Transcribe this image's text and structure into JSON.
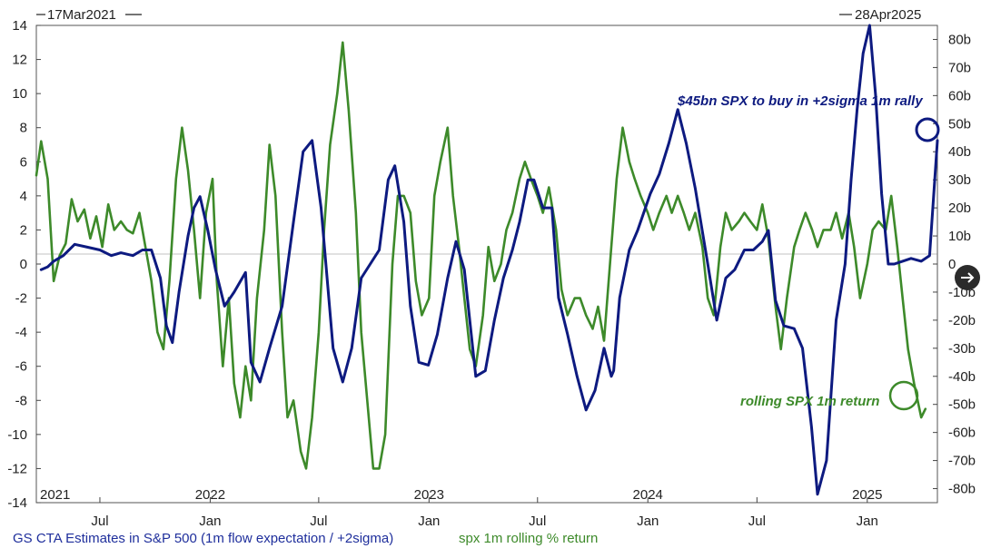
{
  "header": {
    "start_date": "17Mar2021",
    "end_date": "28Apr2025"
  },
  "legend": {
    "series1_label": "GS CTA Estimates in S&P 500 (1m flow expectation / +2sigma)",
    "series2_label": "spx 1m rolling % return"
  },
  "annotations": {
    "top": "$45bn SPX to buy in +2sigma 1m rally",
    "bottom": "rolling SPX 1m return"
  },
  "colors": {
    "series1": "#0d1a80",
    "series2": "#3d8a2a",
    "legend1": "#1f2f9c",
    "legend2": "#3d8a2a"
  },
  "icons": {
    "next_button": "arrow-right-icon"
  },
  "chart_data": {
    "type": "line",
    "x_range": [
      "2021-03-17",
      "2025-04-28"
    ],
    "left_axis": {
      "ylim": [
        -14,
        14
      ],
      "ticks": [
        14,
        12,
        10,
        8,
        6,
        4,
        2,
        0,
        -2,
        -4,
        -6,
        -8,
        -10,
        -12,
        -14
      ],
      "tick_labels": [
        "14",
        "12",
        "10",
        "8",
        "6",
        "4",
        "2",
        "0",
        "-2",
        "-4",
        "-6",
        "-8",
        "-10",
        "-12",
        "-14"
      ]
    },
    "right_axis": {
      "ylim": [
        -85,
        85
      ],
      "ticks": [
        80,
        70,
        60,
        50,
        40,
        30,
        20,
        10,
        0,
        -10,
        -20,
        -30,
        -40,
        -50,
        -60,
        -70,
        -80
      ],
      "tick_labels": [
        "80b",
        "70b",
        "60b",
        "50b",
        "40b",
        "30b",
        "20b",
        "10b",
        "0",
        "-10b",
        "-20b",
        "-30b",
        "-40b",
        "-50b",
        "-60b",
        "-70b",
        "-80b"
      ]
    },
    "x_axis": {
      "month_ticks": [
        {
          "date": "2021-07-01",
          "label": "Jul"
        },
        {
          "date": "2022-01-01",
          "label": "Jan"
        },
        {
          "date": "2022-07-01",
          "label": "Jul"
        },
        {
          "date": "2023-01-01",
          "label": "Jan"
        },
        {
          "date": "2023-07-01",
          "label": "Jul"
        },
        {
          "date": "2024-01-01",
          "label": "Jan"
        },
        {
          "date": "2024-07-01",
          "label": "Jul"
        },
        {
          "date": "2025-01-01",
          "label": "Jan"
        }
      ],
      "year_labels": [
        {
          "date": "2021-03-17",
          "label": "2021"
        },
        {
          "date": "2022-01-01",
          "label": "2022"
        },
        {
          "date": "2023-01-01",
          "label": "2023"
        },
        {
          "date": "2024-01-01",
          "label": "2024"
        },
        {
          "date": "2025-01-01",
          "label": "2025"
        }
      ]
    },
    "series": [
      {
        "axis": "right",
        "points": [
          [
            "2021-03-25",
            -2
          ],
          [
            "2021-04-05",
            -1
          ],
          [
            "2021-04-15",
            1
          ],
          [
            "2021-05-01",
            3
          ],
          [
            "2021-05-20",
            7
          ],
          [
            "2021-06-10",
            6
          ],
          [
            "2021-07-01",
            5
          ],
          [
            "2021-07-20",
            3
          ],
          [
            "2021-08-05",
            4
          ],
          [
            "2021-08-25",
            3
          ],
          [
            "2021-09-10",
            5
          ],
          [
            "2021-09-25",
            5
          ],
          [
            "2021-10-10",
            -5
          ],
          [
            "2021-10-20",
            -22
          ],
          [
            "2021-10-30",
            -28
          ],
          [
            "2021-11-10",
            -10
          ],
          [
            "2021-11-25",
            10
          ],
          [
            "2021-12-05",
            20
          ],
          [
            "2021-12-15",
            24
          ],
          [
            "2021-12-28",
            12
          ],
          [
            "2022-01-10",
            -2
          ],
          [
            "2022-01-25",
            -15
          ],
          [
            "2022-02-10",
            -10
          ],
          [
            "2022-03-01",
            -3
          ],
          [
            "2022-03-10",
            -35
          ],
          [
            "2022-03-25",
            -42
          ],
          [
            "2022-04-10",
            -30
          ],
          [
            "2022-05-01",
            -15
          ],
          [
            "2022-05-20",
            15
          ],
          [
            "2022-06-05",
            40
          ],
          [
            "2022-06-20",
            44
          ],
          [
            "2022-07-05",
            20
          ],
          [
            "2022-07-25",
            -30
          ],
          [
            "2022-08-10",
            -42
          ],
          [
            "2022-08-25",
            -30
          ],
          [
            "2022-09-10",
            -5
          ],
          [
            "2022-09-25",
            0
          ],
          [
            "2022-10-10",
            5
          ],
          [
            "2022-10-25",
            30
          ],
          [
            "2022-11-05",
            35
          ],
          [
            "2022-11-20",
            15
          ],
          [
            "2022-12-01",
            -15
          ],
          [
            "2022-12-15",
            -35
          ],
          [
            "2022-12-31",
            -36
          ],
          [
            "2023-01-15",
            -25
          ],
          [
            "2023-02-01",
            -5
          ],
          [
            "2023-02-15",
            8
          ],
          [
            "2023-03-01",
            -2
          ],
          [
            "2023-03-20",
            -40
          ],
          [
            "2023-04-05",
            -38
          ],
          [
            "2023-04-20",
            -20
          ],
          [
            "2023-05-05",
            -5
          ],
          [
            "2023-05-20",
            5
          ],
          [
            "2023-06-01",
            15
          ],
          [
            "2023-06-15",
            30
          ],
          [
            "2023-06-25",
            30
          ],
          [
            "2023-07-10",
            20
          ],
          [
            "2023-07-25",
            20
          ],
          [
            "2023-08-05",
            -12
          ],
          [
            "2023-08-20",
            -25
          ],
          [
            "2023-09-05",
            -40
          ],
          [
            "2023-09-20",
            -52
          ],
          [
            "2023-10-05",
            -45
          ],
          [
            "2023-10-20",
            -30
          ],
          [
            "2023-11-01",
            -40
          ],
          [
            "2023-11-05",
            -38
          ],
          [
            "2023-11-15",
            -12
          ],
          [
            "2023-12-01",
            5
          ],
          [
            "2023-12-15",
            12
          ],
          [
            "2024-01-05",
            25
          ],
          [
            "2024-01-20",
            32
          ],
          [
            "2024-02-05",
            43
          ],
          [
            "2024-02-20",
            55
          ],
          [
            "2024-03-05",
            43
          ],
          [
            "2024-03-20",
            27
          ],
          [
            "2024-04-10",
            0
          ],
          [
            "2024-04-25",
            -20
          ],
          [
            "2024-05-10",
            -5
          ],
          [
            "2024-05-25",
            -2
          ],
          [
            "2024-06-10",
            5
          ],
          [
            "2024-06-25",
            5
          ],
          [
            "2024-07-10",
            8
          ],
          [
            "2024-07-20",
            12
          ],
          [
            "2024-08-01",
            -13
          ],
          [
            "2024-08-15",
            -22
          ],
          [
            "2024-09-01",
            -23
          ],
          [
            "2024-09-15",
            -30
          ],
          [
            "2024-09-30",
            -58
          ],
          [
            "2024-10-10",
            -82
          ],
          [
            "2024-10-25",
            -70
          ],
          [
            "2024-11-10",
            -20
          ],
          [
            "2024-11-25",
            0
          ],
          [
            "2024-12-05",
            30
          ],
          [
            "2024-12-15",
            55
          ],
          [
            "2024-12-25",
            75
          ],
          [
            "2025-01-05",
            85
          ],
          [
            "2025-01-15",
            60
          ],
          [
            "2025-01-25",
            25
          ],
          [
            "2025-02-05",
            0
          ],
          [
            "2025-02-15",
            0
          ],
          [
            "2025-03-01",
            1
          ],
          [
            "2025-03-15",
            2
          ],
          [
            "2025-04-01",
            1
          ],
          [
            "2025-04-15",
            3
          ],
          [
            "2025-04-28",
            44
          ]
        ]
      },
      {
        "axis": "left",
        "points": [
          [
            "2021-03-17",
            5.2
          ],
          [
            "2021-03-25",
            7.2
          ],
          [
            "2021-04-05",
            5
          ],
          [
            "2021-04-15",
            -1
          ],
          [
            "2021-04-25",
            0.5
          ],
          [
            "2021-05-05",
            1.2
          ],
          [
            "2021-05-15",
            3.8
          ],
          [
            "2021-05-25",
            2.5
          ],
          [
            "2021-06-05",
            3.2
          ],
          [
            "2021-06-15",
            1.5
          ],
          [
            "2021-06-25",
            2.8
          ],
          [
            "2021-07-05",
            1
          ],
          [
            "2021-07-15",
            3.5
          ],
          [
            "2021-07-25",
            2
          ],
          [
            "2021-08-05",
            2.5
          ],
          [
            "2021-08-15",
            2
          ],
          [
            "2021-08-25",
            1.8
          ],
          [
            "2021-09-05",
            3
          ],
          [
            "2021-09-15",
            1
          ],
          [
            "2021-09-25",
            -1
          ],
          [
            "2021-10-05",
            -4
          ],
          [
            "2021-10-15",
            -5
          ],
          [
            "2021-10-25",
            -1
          ],
          [
            "2021-11-05",
            5
          ],
          [
            "2021-11-15",
            8
          ],
          [
            "2021-11-25",
            5.5
          ],
          [
            "2021-12-05",
            2
          ],
          [
            "2021-12-15",
            -2
          ],
          [
            "2021-12-25",
            3
          ],
          [
            "2022-01-05",
            5
          ],
          [
            "2022-01-12",
            -1
          ],
          [
            "2022-01-22",
            -6
          ],
          [
            "2022-02-01",
            -2
          ],
          [
            "2022-02-10",
            -7
          ],
          [
            "2022-02-20",
            -9
          ],
          [
            "2022-03-01",
            -6
          ],
          [
            "2022-03-10",
            -8
          ],
          [
            "2022-03-20",
            -2
          ],
          [
            "2022-04-01",
            2
          ],
          [
            "2022-04-10",
            7
          ],
          [
            "2022-04-20",
            4
          ],
          [
            "2022-05-01",
            -4
          ],
          [
            "2022-05-10",
            -9
          ],
          [
            "2022-05-20",
            -8
          ],
          [
            "2022-06-01",
            -11
          ],
          [
            "2022-06-10",
            -12
          ],
          [
            "2022-06-20",
            -9
          ],
          [
            "2022-07-01",
            -4
          ],
          [
            "2022-07-10",
            2
          ],
          [
            "2022-07-20",
            7
          ],
          [
            "2022-08-01",
            10
          ],
          [
            "2022-08-10",
            13
          ],
          [
            "2022-08-20",
            9
          ],
          [
            "2022-09-01",
            3
          ],
          [
            "2022-09-10",
            -4
          ],
          [
            "2022-09-20",
            -8
          ],
          [
            "2022-09-30",
            -12
          ],
          [
            "2022-10-10",
            -12
          ],
          [
            "2022-10-20",
            -10
          ],
          [
            "2022-11-01",
            0
          ],
          [
            "2022-11-10",
            4
          ],
          [
            "2022-11-20",
            4
          ],
          [
            "2022-12-01",
            3
          ],
          [
            "2022-12-10",
            -1
          ],
          [
            "2022-12-20",
            -3
          ],
          [
            "2023-01-01",
            -2
          ],
          [
            "2023-01-10",
            4
          ],
          [
            "2023-01-20",
            6
          ],
          [
            "2023-02-01",
            8
          ],
          [
            "2023-02-10",
            4
          ],
          [
            "2023-02-20",
            1
          ],
          [
            "2023-03-01",
            -2
          ],
          [
            "2023-03-10",
            -5
          ],
          [
            "2023-03-20",
            -6
          ],
          [
            "2023-04-01",
            -3
          ],
          [
            "2023-04-10",
            1
          ],
          [
            "2023-04-20",
            -1
          ],
          [
            "2023-05-01",
            0
          ],
          [
            "2023-05-10",
            2
          ],
          [
            "2023-05-20",
            3
          ],
          [
            "2023-06-01",
            5
          ],
          [
            "2023-06-10",
            6
          ],
          [
            "2023-06-20",
            5
          ],
          [
            "2023-07-01",
            4
          ],
          [
            "2023-07-10",
            3
          ],
          [
            "2023-07-20",
            4.5
          ],
          [
            "2023-08-01",
            2
          ],
          [
            "2023-08-10",
            -1.5
          ],
          [
            "2023-08-20",
            -3
          ],
          [
            "2023-09-01",
            -2
          ],
          [
            "2023-09-10",
            -2
          ],
          [
            "2023-09-20",
            -3
          ],
          [
            "2023-10-01",
            -3.8
          ],
          [
            "2023-10-10",
            -2.5
          ],
          [
            "2023-10-20",
            -4.5
          ],
          [
            "2023-11-01",
            1
          ],
          [
            "2023-11-10",
            5
          ],
          [
            "2023-11-20",
            8
          ],
          [
            "2023-12-01",
            6
          ],
          [
            "2023-12-10",
            5
          ],
          [
            "2023-12-20",
            4
          ],
          [
            "2024-01-01",
            3
          ],
          [
            "2024-01-10",
            2
          ],
          [
            "2024-01-20",
            3
          ],
          [
            "2024-02-01",
            4
          ],
          [
            "2024-02-10",
            3
          ],
          [
            "2024-02-20",
            4
          ],
          [
            "2024-03-01",
            3
          ],
          [
            "2024-03-10",
            2
          ],
          [
            "2024-03-20",
            3
          ],
          [
            "2024-04-01",
            1
          ],
          [
            "2024-04-10",
            -2
          ],
          [
            "2024-04-20",
            -3
          ],
          [
            "2024-05-01",
            1
          ],
          [
            "2024-05-10",
            3
          ],
          [
            "2024-05-20",
            2
          ],
          [
            "2024-06-01",
            2.5
          ],
          [
            "2024-06-10",
            3
          ],
          [
            "2024-06-20",
            2.5
          ],
          [
            "2024-07-01",
            2
          ],
          [
            "2024-07-10",
            3.5
          ],
          [
            "2024-07-20",
            1.5
          ],
          [
            "2024-08-01",
            -2.5
          ],
          [
            "2024-08-10",
            -5
          ],
          [
            "2024-08-20",
            -2
          ],
          [
            "2024-09-01",
            1
          ],
          [
            "2024-09-10",
            2
          ],
          [
            "2024-09-20",
            3
          ],
          [
            "2024-10-01",
            2
          ],
          [
            "2024-10-10",
            1
          ],
          [
            "2024-10-20",
            2
          ],
          [
            "2024-11-01",
            2
          ],
          [
            "2024-11-10",
            3
          ],
          [
            "2024-11-20",
            1.5
          ],
          [
            "2024-12-01",
            3
          ],
          [
            "2024-12-10",
            1
          ],
          [
            "2024-12-20",
            -2
          ],
          [
            "2025-01-01",
            0
          ],
          [
            "2025-01-10",
            2
          ],
          [
            "2025-01-20",
            2.5
          ],
          [
            "2025-02-01",
            2
          ],
          [
            "2025-02-10",
            4
          ],
          [
            "2025-02-20",
            1
          ],
          [
            "2025-03-01",
            -2
          ],
          [
            "2025-03-10",
            -5
          ],
          [
            "2025-03-20",
            -7
          ],
          [
            "2025-04-01",
            -9
          ],
          [
            "2025-04-08",
            -8.5
          ]
        ]
      }
    ]
  }
}
